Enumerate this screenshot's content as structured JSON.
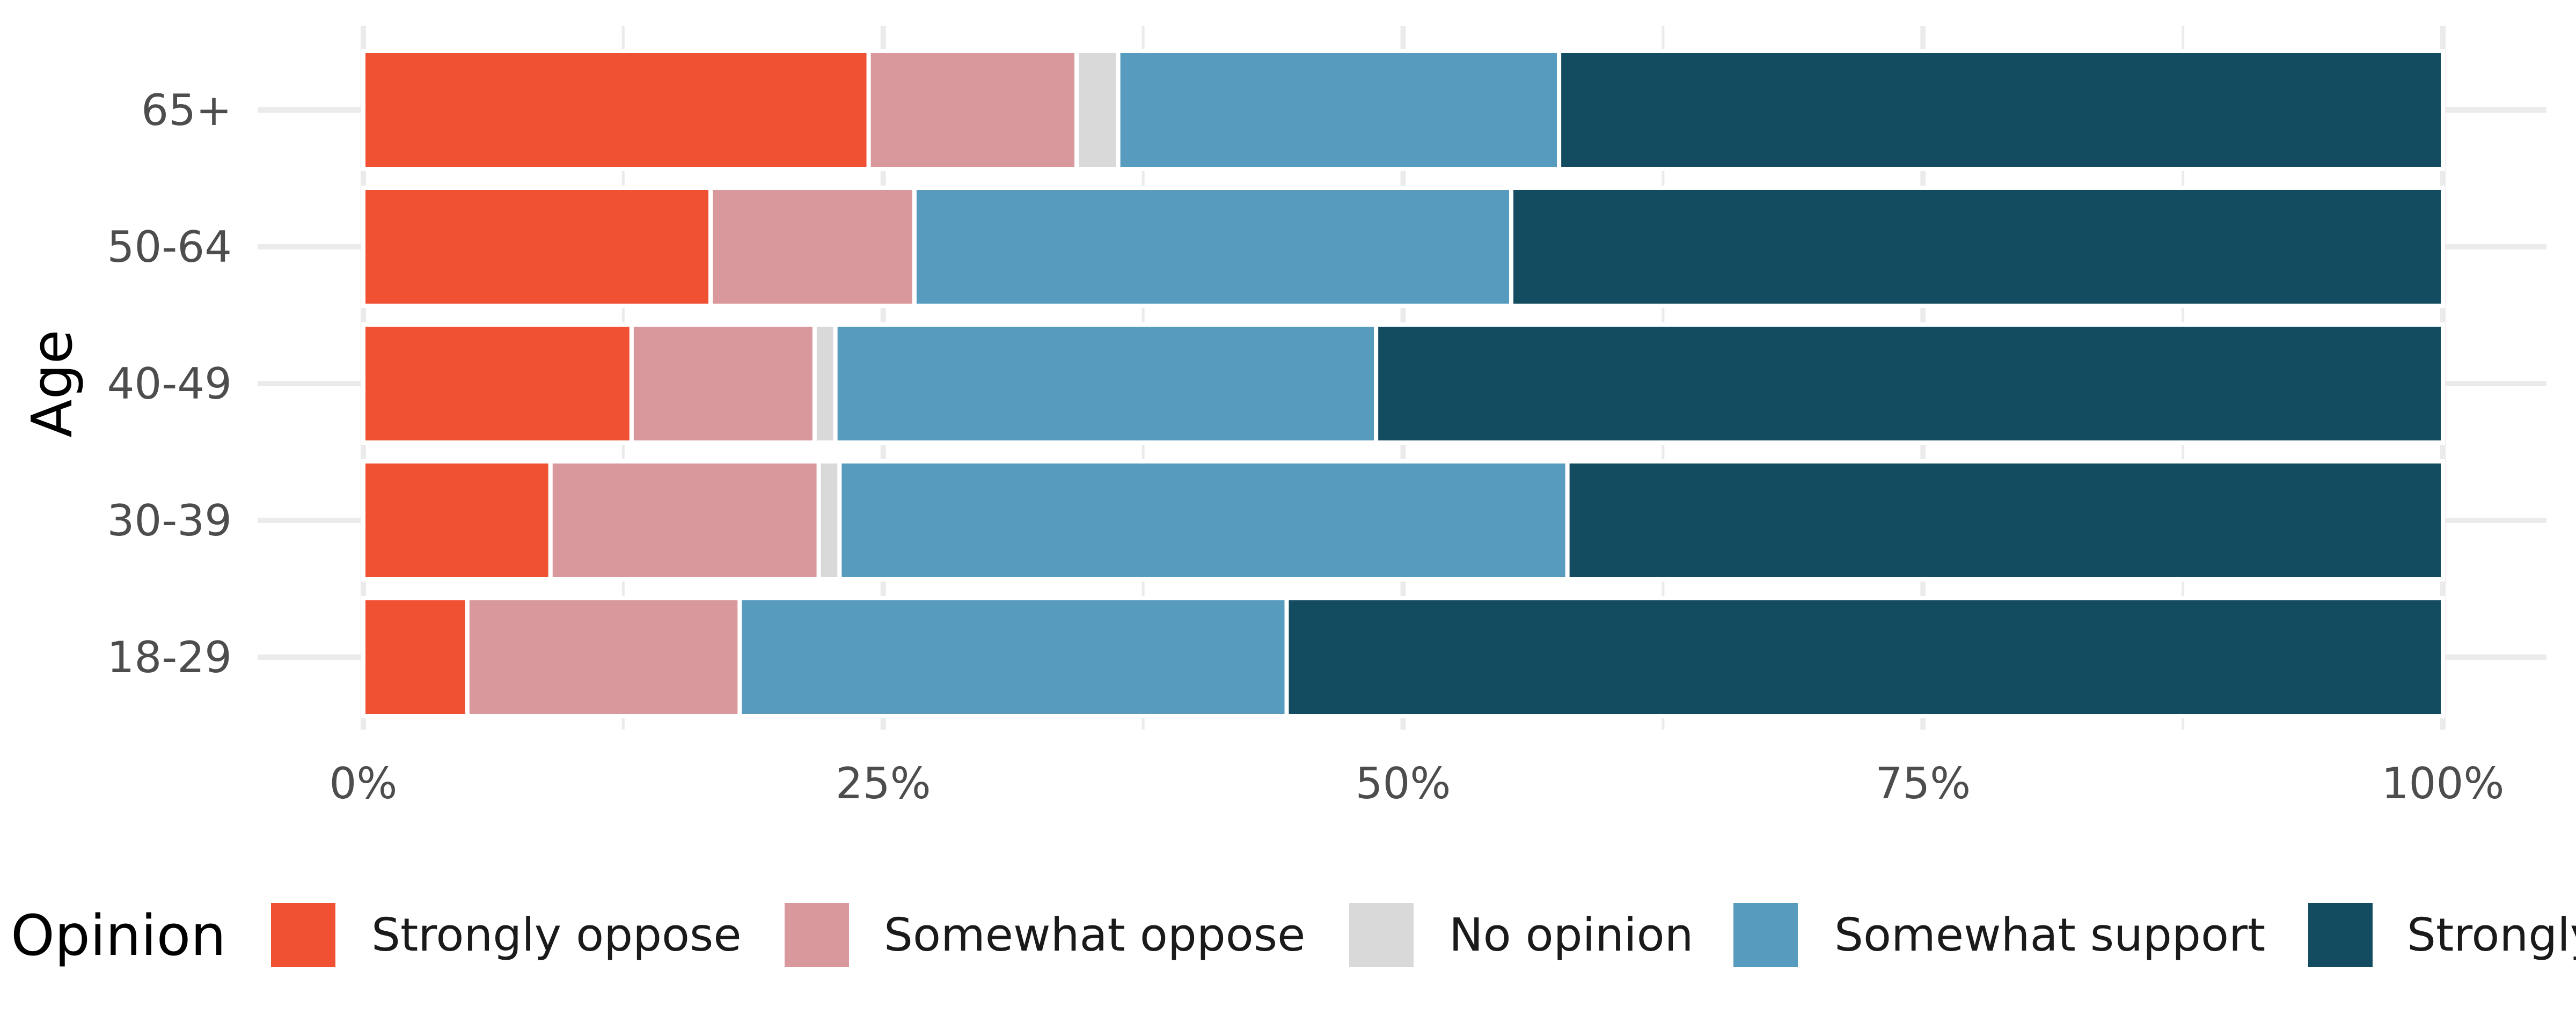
{
  "chart_data": {
    "type": "bar",
    "orientation": "horizontal",
    "stacked": "percent",
    "categories": [
      "65+",
      "50-64",
      "40-49",
      "30-39",
      "18-29"
    ],
    "series": [
      {
        "name": "Strongly oppose",
        "color": "#f05133",
        "values": [
          24.3,
          16.7,
          12.9,
          9.0,
          5.0
        ]
      },
      {
        "name": "Somewhat oppose",
        "color": "#d9989c",
        "values": [
          10.0,
          9.8,
          8.8,
          12.9,
          13.1
        ]
      },
      {
        "name": "No opinion",
        "color": "#d9d9d9",
        "values": [
          2.0,
          0.0,
          1.0,
          1.0,
          0.0
        ]
      },
      {
        "name": "Somewhat support",
        "color": "#579cbf",
        "values": [
          21.2,
          28.7,
          26.0,
          35.0,
          26.3
        ]
      },
      {
        "name": "Strongly support",
        "color": "#134c60",
        "values": [
          42.5,
          44.8,
          51.3,
          42.1,
          55.6
        ]
      }
    ],
    "ylabel": "Age",
    "xlabel": "",
    "xlim": [
      0,
      100
    ],
    "x_ticks": [
      "0%",
      "25%",
      "50%",
      "75%",
      "100%"
    ],
    "legend": {
      "title": "Opinion",
      "position": "bottom"
    },
    "grid": true
  }
}
